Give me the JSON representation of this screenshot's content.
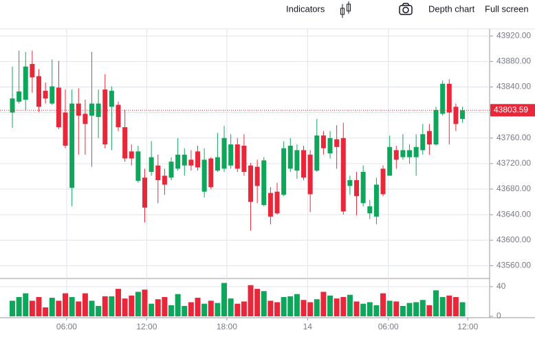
{
  "toolbar": {
    "indicators": "Indicators",
    "depth_chart": "Depth chart",
    "full_screen": "Full screen"
  },
  "chart_data": {
    "type": "candlestick",
    "x": [
      0,
      1,
      2,
      3,
      4,
      5,
      6,
      7,
      8,
      9,
      10,
      11,
      12,
      13,
      14,
      15,
      16,
      17,
      18,
      19,
      20,
      21,
      22,
      23,
      24,
      25,
      26,
      27,
      28,
      29,
      30,
      31,
      32,
      33,
      34,
      35,
      36,
      37,
      38,
      39,
      40,
      41,
      42,
      43,
      44,
      45,
      46,
      47,
      48,
      49,
      50,
      51,
      52,
      53,
      54,
      55,
      56,
      57,
      58,
      59,
      60,
      61,
      62,
      63,
      64,
      65,
      66,
      67,
      68
    ],
    "open": [
      43800,
      43817,
      43820,
      43876,
      43857,
      43834,
      43814,
      43839,
      43800,
      43682,
      43814,
      43798,
      43795,
      43793,
      43836,
      43809,
      43812,
      43777,
      43739,
      43693,
      43698,
      43707,
      43717,
      43701,
      43698,
      43712,
      43717,
      43726,
      43739,
      43676,
      43728,
      43709,
      43712,
      43717,
      43750,
      43748,
      43717,
      43715,
      43655,
      43674,
      43676,
      43671,
      43712,
      43709,
      43741,
      43734,
      43709,
      43764,
      43736,
      43758,
      43760,
      43685,
      43694,
      43658,
      43642,
      43637,
      43712,
      43701,
      43741,
      43730,
      43730,
      43730,
      43741,
      43771,
      43750,
      43798,
      43845,
      43809,
      43790
    ],
    "high": [
      43872,
      43897,
      43895,
      43897,
      43868,
      43847,
      43883,
      43881,
      43836,
      43836,
      43838,
      43820,
      43895,
      43836,
      43860,
      43841,
      43817,
      43804,
      43750,
      43748,
      43712,
      43755,
      43734,
      43712,
      43730,
      43760,
      43744,
      43741,
      43748,
      43744,
      43730,
      43768,
      43779,
      43766,
      43760,
      43766,
      43721,
      43726,
      43730,
      43683,
      43690,
      43755,
      43760,
      43750,
      43748,
      43741,
      43790,
      43771,
      43771,
      43780,
      43784,
      43701,
      43707,
      43717,
      43663,
      43698,
      43717,
      43764,
      43748,
      43766,
      43750,
      43766,
      43782,
      43782,
      43809,
      43850,
      43852,
      43814,
      43809
    ],
    "low": [
      43776,
      43814,
      43804,
      43831,
      43801,
      43814,
      43812,
      43774,
      43744,
      43653,
      43734,
      43734,
      43715,
      43760,
      43744,
      43741,
      43771,
      43723,
      43717,
      43690,
      43628,
      43701,
      43658,
      43671,
      43694,
      43709,
      43701,
      43709,
      43709,
      43667,
      43680,
      43707,
      43707,
      43712,
      43707,
      43701,
      43615,
      43658,
      43653,
      43625,
      43640,
      43669,
      43707,
      43696,
      43694,
      43644,
      43707,
      43734,
      43728,
      43712,
      43640,
      43671,
      43639,
      43653,
      43633,
      43625,
      43669,
      43701,
      43712,
      43726,
      43720,
      43701,
      43734,
      43734,
      43748,
      43795,
      43750,
      43771,
      43784
    ],
    "close": [
      43822,
      43833,
      43872,
      43855,
      43809,
      43822,
      43841,
      43777,
      43748,
      43814,
      43795,
      43782,
      43814,
      43814,
      43750,
      43834,
      43777,
      43728,
      43728,
      43739,
      43651,
      43730,
      43694,
      43687,
      43723,
      43734,
      43734,
      43717,
      43714,
      43726,
      43683,
      43730,
      43760,
      43750,
      43712,
      43707,
      43660,
      43685,
      43725,
      43637,
      43642,
      43744,
      43748,
      43741,
      43698,
      43672,
      43764,
      43744,
      43760,
      43746,
      43645,
      43694,
      43669,
      43707,
      43653,
      43687,
      43672,
      43746,
      43726,
      43741,
      43741,
      43746,
      43766,
      43750,
      43804,
      43845,
      43800,
      43782,
      43803.59
    ],
    "volume": [
      21,
      26,
      31,
      21,
      26,
      12,
      25,
      21,
      31,
      26,
      20,
      31,
      21,
      14,
      27,
      27,
      37,
      24,
      28,
      33,
      36,
      17,
      23,
      26,
      15,
      30,
      14,
      19,
      25,
      17,
      21,
      18,
      45,
      24,
      17,
      20,
      42,
      37,
      34,
      21,
      19,
      26,
      27,
      30,
      22,
      19,
      23,
      33,
      28,
      24,
      26,
      29,
      20,
      17,
      19,
      15,
      31,
      21,
      20,
      14,
      18,
      19,
      22,
      15,
      35,
      26,
      28,
      26,
      19
    ],
    "up_color": "#0ea65a",
    "down_color": "#e8283a",
    "last_price": 43803.59,
    "xlim": [
      -1.87,
      72.1
    ],
    "xticks": [
      {
        "value": 8.2,
        "label": "06:00"
      },
      {
        "value": 20.3,
        "label": "12:00"
      },
      {
        "value": 32.4,
        "label": "18:00"
      },
      {
        "value": 44.6,
        "label": "14"
      },
      {
        "value": 56.8,
        "label": "06:00"
      },
      {
        "value": 68.8,
        "label": "12:00"
      }
    ],
    "ylim": [
      43540,
      43931
    ],
    "yticks": [
      {
        "value": 43560,
        "label": "43560.00"
      },
      {
        "value": 43600,
        "label": "43600.00"
      },
      {
        "value": 43640,
        "label": "43640.00"
      },
      {
        "value": 43680,
        "label": "43680.00"
      },
      {
        "value": 43720,
        "label": "43720.00"
      },
      {
        "value": 43760,
        "label": "43760.00"
      },
      {
        "value": 43800,
        "label": "43800.00"
      },
      {
        "value": 43840,
        "label": "43840.00"
      },
      {
        "value": 43880,
        "label": "43880.00"
      },
      {
        "value": 43920,
        "label": "43920.00"
      }
    ],
    "volume_ylim": [
      0,
      51
    ],
    "volume_yticks": [
      0,
      40
    ],
    "grid": true
  }
}
